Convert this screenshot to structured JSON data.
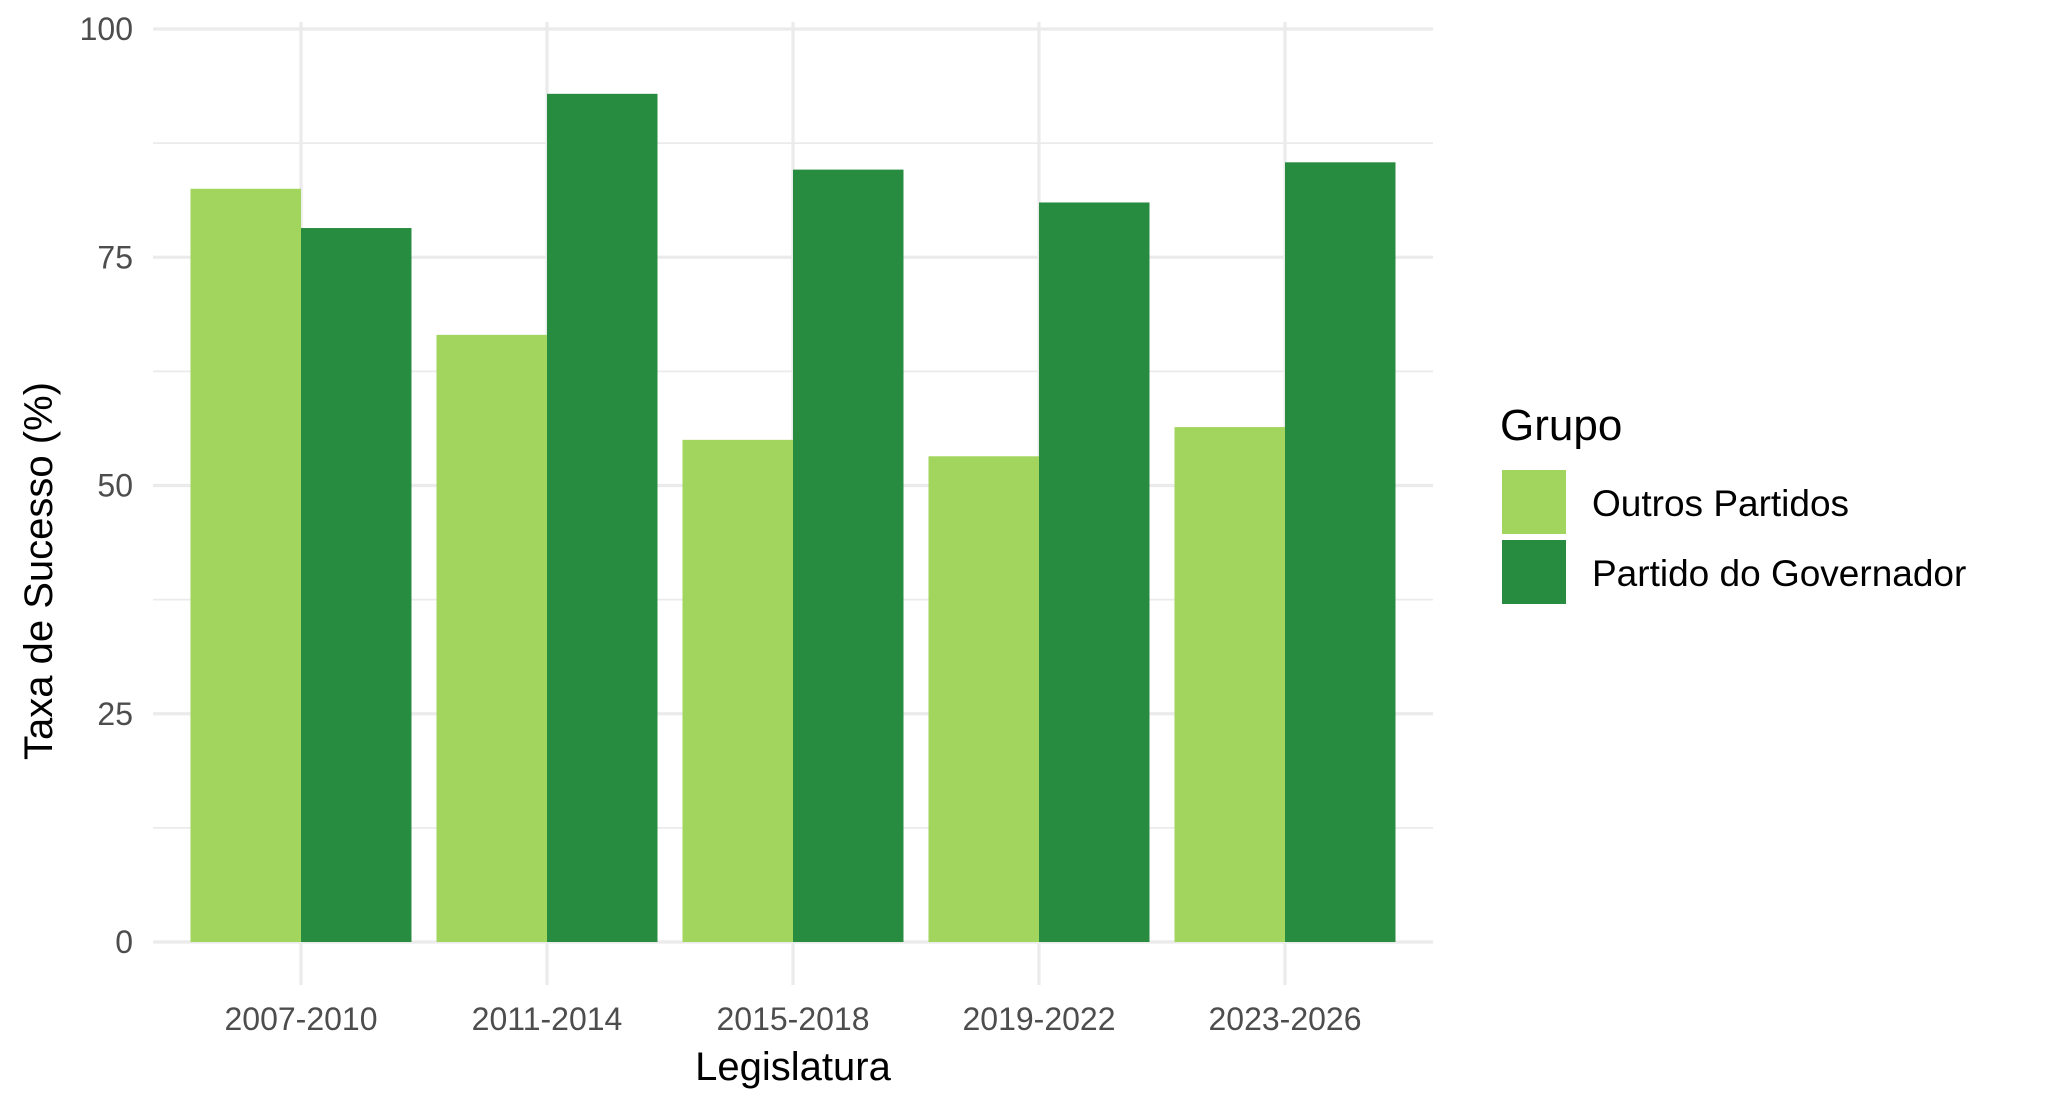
{
  "chart_data": {
    "type": "bar",
    "xlabel": "Legislatura",
    "ylabel": "Taxa de Sucesso (%)",
    "categories": [
      "2007-2010",
      "2011-2014",
      "2015-2018",
      "2019-2022",
      "2023-2026"
    ],
    "ylim": [
      0,
      100
    ],
    "yticks": [
      0,
      25,
      50,
      75,
      100
    ],
    "grid": true,
    "legend": {
      "title": "Grupo",
      "position": "right"
    },
    "series": [
      {
        "name": "Outros Partidos",
        "color": "#a1d55e",
        "values": [
          82.5,
          66.5,
          55.0,
          53.2,
          56.4
        ]
      },
      {
        "name": "Partido do Governador",
        "color": "#288c40",
        "values": [
          78.2,
          92.9,
          84.6,
          81.0,
          85.4
        ]
      }
    ]
  }
}
